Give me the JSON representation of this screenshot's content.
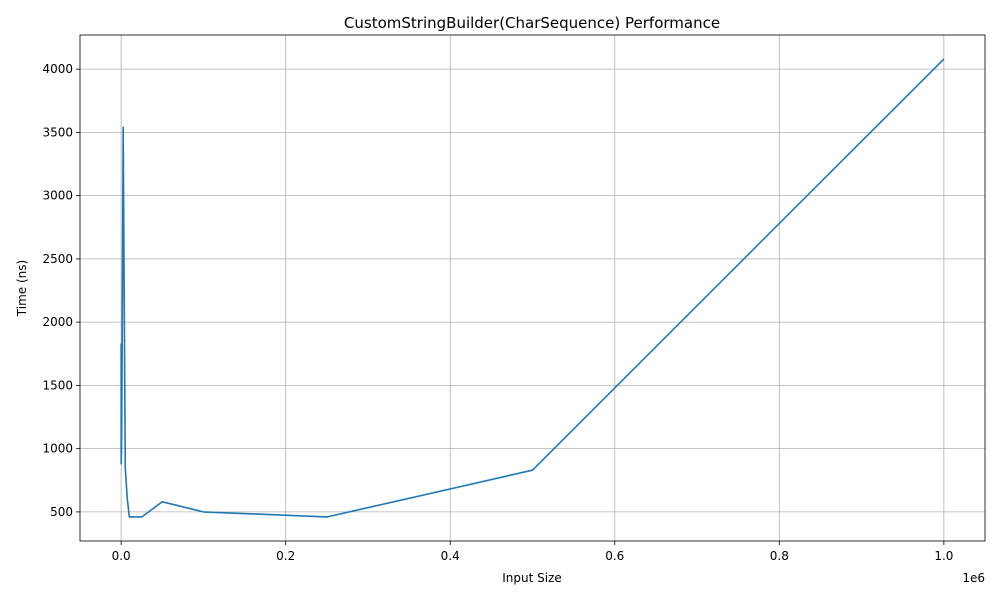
{
  "chart_data": {
    "type": "line",
    "title": "CustomStringBuilder(CharSequence) Performance",
    "xlabel": "Input Size",
    "ylabel": "Time (ns)",
    "x_offset_label": "1e6",
    "xlim": [
      -50000,
      1050000
    ],
    "ylim": [
      270,
      4270
    ],
    "grid": true,
    "xticks": [
      0,
      200000,
      400000,
      600000,
      800000,
      1000000
    ],
    "xtick_labels": [
      "0.0",
      "0.2",
      "0.4",
      "0.6",
      "0.8",
      "1.0"
    ],
    "yticks": [
      500,
      1000,
      1500,
      2000,
      2500,
      3000,
      3500,
      4000
    ],
    "ytick_labels": [
      "500",
      "1000",
      "1500",
      "2000",
      "2500",
      "3000",
      "3500",
      "4000"
    ],
    "series": [
      {
        "color": "#1f77b4",
        "x": [
          10,
          50,
          100,
          500,
          1000,
          2500,
          5000,
          7500,
          10000,
          25000,
          50000,
          100000,
          250000,
          500000,
          1000000
        ],
        "y": [
          1830,
          880,
          900,
          1000,
          1500,
          3540,
          850,
          600,
          460,
          460,
          580,
          500,
          460,
          830,
          4080
        ]
      }
    ]
  }
}
